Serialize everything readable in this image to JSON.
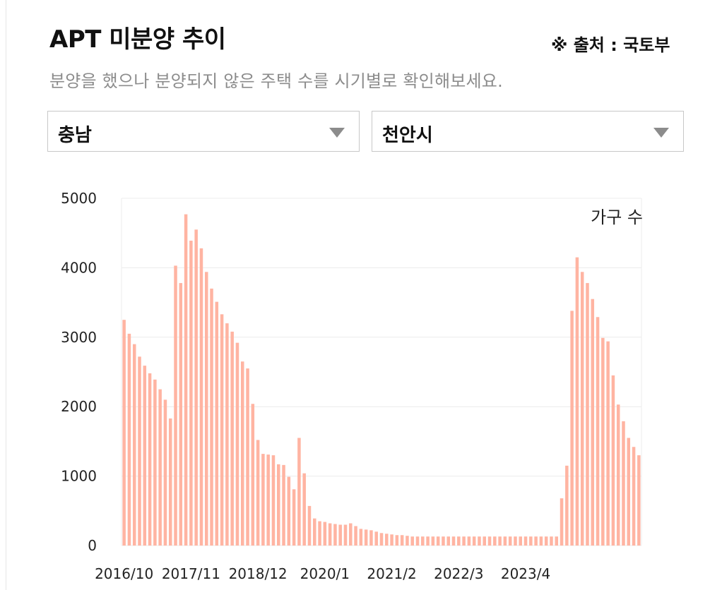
{
  "header": {
    "title": "APT 미분양 추이",
    "source": "※ 출처 : 국토부",
    "subtitle": "분양을 했으나 분양되지 않은 주택 수를 시기별로 확인해보세요."
  },
  "filters": {
    "region": "충남",
    "city": "천안시"
  },
  "colors": {
    "bar": "#ffb4a2",
    "grid": "#ececec",
    "caret": "#8c8c8c"
  },
  "icons": {
    "dropdown": "caret-down-icon"
  },
  "chart_data": {
    "type": "bar",
    "unit_label": "가구 수",
    "ylim": [
      0,
      5000
    ],
    "y_ticks": [
      0,
      1000,
      2000,
      3000,
      4000,
      5000
    ],
    "grid": true,
    "x_tick_labels": [
      "2016/10",
      "2017/11",
      "2018/12",
      "2020/1",
      "2021/2",
      "2022/3",
      "2023/4"
    ],
    "x_tick_index": [
      0,
      13,
      26,
      39,
      52,
      65,
      78
    ],
    "values": [
      3250,
      3050,
      2900,
      2720,
      2590,
      2480,
      2390,
      2250,
      2100,
      1830,
      4030,
      3780,
      4770,
      4390,
      4550,
      4280,
      3940,
      3700,
      3510,
      3330,
      3200,
      3080,
      2920,
      2650,
      2550,
      2040,
      1520,
      1320,
      1310,
      1300,
      1170,
      1160,
      990,
      810,
      1550,
      1040,
      570,
      390,
      350,
      340,
      320,
      310,
      300,
      300,
      320,
      280,
      240,
      230,
      220,
      200,
      180,
      170,
      160,
      150,
      150,
      140,
      130,
      130,
      130,
      130,
      130,
      130,
      130,
      130,
      130,
      130,
      130,
      130,
      130,
      130,
      130,
      130,
      130,
      130,
      130,
      130,
      130,
      130,
      130,
      130,
      130,
      130,
      130,
      130,
      130,
      680,
      1150,
      3380,
      4150,
      3940,
      3780,
      3550,
      3290,
      2990,
      2940,
      2450,
      2030,
      1790,
      1550,
      1420,
      1300
    ]
  }
}
